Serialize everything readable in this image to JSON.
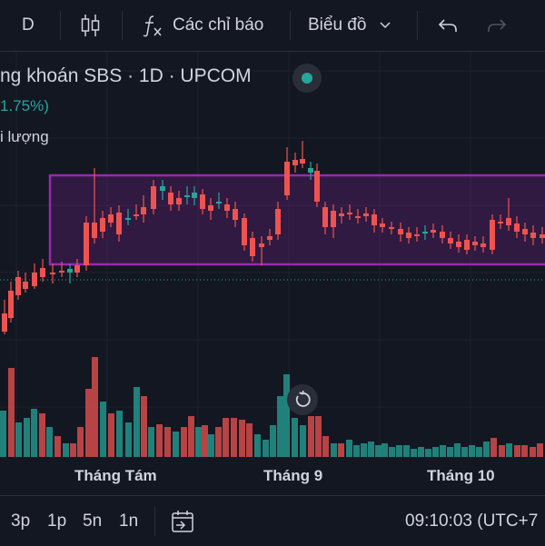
{
  "toolbar": {
    "interval_label": "D",
    "indicators_label": "Các chỉ báo",
    "chart_type_label": "Biểu đồ"
  },
  "legend": {
    "title": "ng khoán SBS · 1D · UPCOM",
    "change": "1.75%)",
    "volume_label": "i lượng"
  },
  "x_axis": {
    "labels": [
      "Tháng Tám",
      "Tháng 9",
      "Tháng 10"
    ]
  },
  "bottom": {
    "ranges": [
      "3p",
      "1p",
      "5n",
      "1n"
    ],
    "time": "09:10:03 (UTC+7"
  },
  "colors": {
    "up": "#26a69a",
    "down": "#ef5350",
    "rectangle": "#9c27b0",
    "background": "#131722"
  },
  "icons": [
    "candlestick-icon",
    "function-icon",
    "chevron-down-icon",
    "undo-icon",
    "redo-icon",
    "goto-date-icon",
    "reset-chart-icon",
    "status-dot-icon"
  ]
}
